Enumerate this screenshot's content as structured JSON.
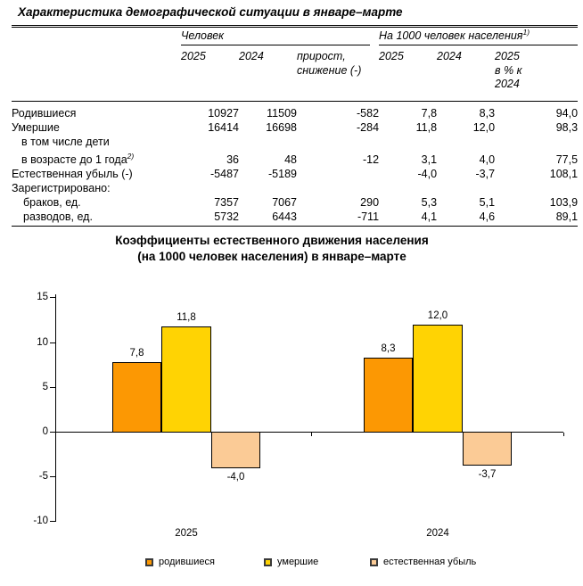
{
  "page": {
    "title": "Характеристика демографической ситуации в январе–марте"
  },
  "table": {
    "group1": "Человек",
    "group2": "На 1000 человек населения",
    "group2_sup": "1)",
    "headers": {
      "c1": "2025",
      "c2": "2024",
      "c3_line1": "прирост,",
      "c3_line2": "снижение (-)",
      "c4": "2025",
      "c5": "2024",
      "c6_line1": "2025",
      "c6_line2": "в % к",
      "c6_line3": "2024"
    },
    "rows": [
      {
        "label": "Родившиеся",
        "values": [
          "10927",
          "11509",
          "-582",
          "7,8",
          "8,3",
          "94,0"
        ]
      },
      {
        "label": "Умершие",
        "values": [
          "16414",
          "16698",
          "-284",
          "11,8",
          "12,0",
          "98,3"
        ]
      },
      {
        "label_line1": "в том числе дети",
        "label_line2": "в возрасте до 1 года",
        "label_sup": "2)",
        "values": [
          "36",
          "48",
          "-12",
          "3,1",
          "4,0",
          "77,5"
        ]
      },
      {
        "label": "Естественная убыль (-)",
        "values": [
          "-5487",
          "-5189",
          "",
          "-4,0",
          "-3,7",
          "108,1"
        ]
      },
      {
        "label": "Зарегистрировано:",
        "values": [
          "",
          "",
          "",
          "",
          "",
          ""
        ]
      },
      {
        "label": "браков, ед.",
        "values": [
          "7357",
          "7067",
          "290",
          "5,3",
          "5,1",
          "103,9"
        ]
      },
      {
        "label": "разводов, ед.",
        "values": [
          "5732",
          "6443",
          "-711",
          "4,1",
          "4,6",
          "89,1"
        ]
      }
    ]
  },
  "chart_data": {
    "type": "bar",
    "title_line1": "Коэффициенты естественного движения населения",
    "title_line2": "(на 1000 человек населения) в январе–марте",
    "categories": [
      "2025",
      "2024"
    ],
    "series": [
      {
        "name": "родившиеся",
        "color": "#FC9803",
        "values": [
          7.8,
          8.3
        ],
        "value_labels": [
          "7,8",
          "8,3"
        ]
      },
      {
        "name": "умершие",
        "color": "#FFD303",
        "values": [
          11.8,
          12.0
        ],
        "value_labels": [
          "11,8",
          "12,0"
        ]
      },
      {
        "name": "естественная убыль",
        "color": "#FBCB96",
        "values": [
          -4.0,
          -3.7
        ],
        "value_labels": [
          "-4,0",
          "-3,7"
        ]
      }
    ],
    "ylim": [
      -10,
      15
    ],
    "yticks": [
      15,
      10,
      5,
      0,
      -5,
      -10
    ],
    "grid": false,
    "legend_position": "bottom"
  }
}
